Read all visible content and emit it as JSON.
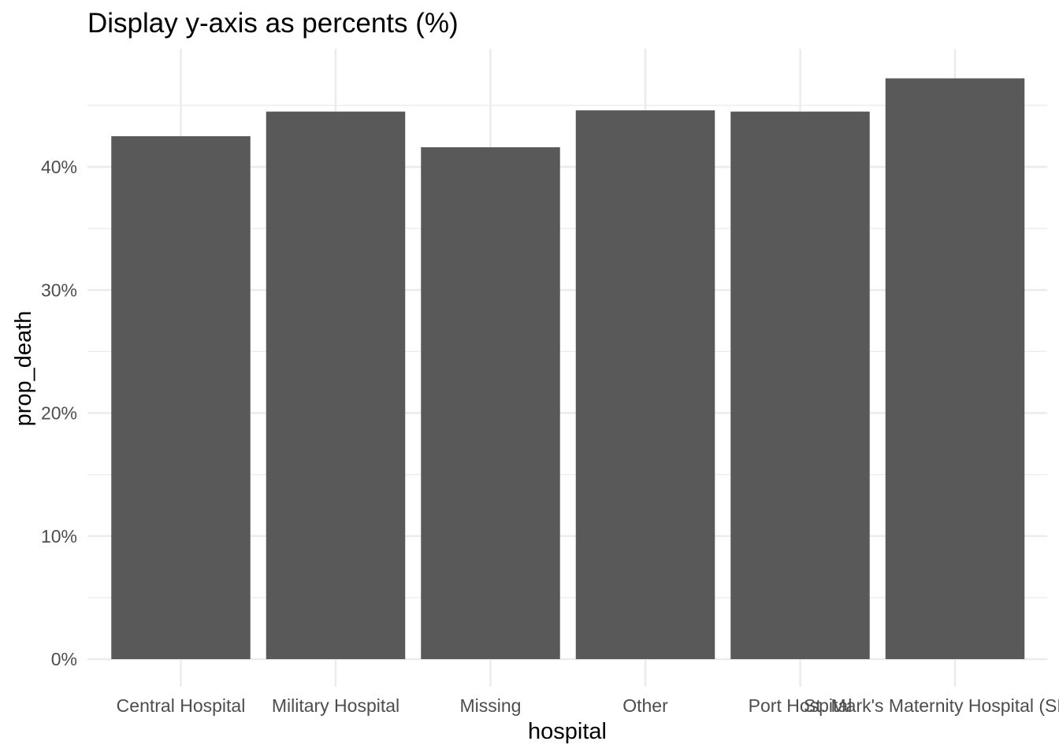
{
  "chart_data": {
    "type": "bar",
    "title": "Display y-axis as percents (%)",
    "xlabel": "hospital",
    "ylabel": "prop_death",
    "categories": [
      "Central Hospital",
      "Military Hospital",
      "Missing",
      "Other",
      "Port Hospital",
      "St. Mark's Maternity Hospital (SMMH)"
    ],
    "values": [
      0.425,
      0.445,
      0.416,
      0.446,
      0.445,
      0.472
    ],
    "ylim": [
      0,
      0.496
    ],
    "y_ticks": [
      0,
      0.1,
      0.2,
      0.3,
      0.4
    ],
    "y_tick_labels": [
      "0%",
      "10%",
      "20%",
      "30%",
      "40%"
    ],
    "grid": true,
    "legend": "none",
    "bar_color": "#595959",
    "grid_color": "#ebebeb"
  }
}
